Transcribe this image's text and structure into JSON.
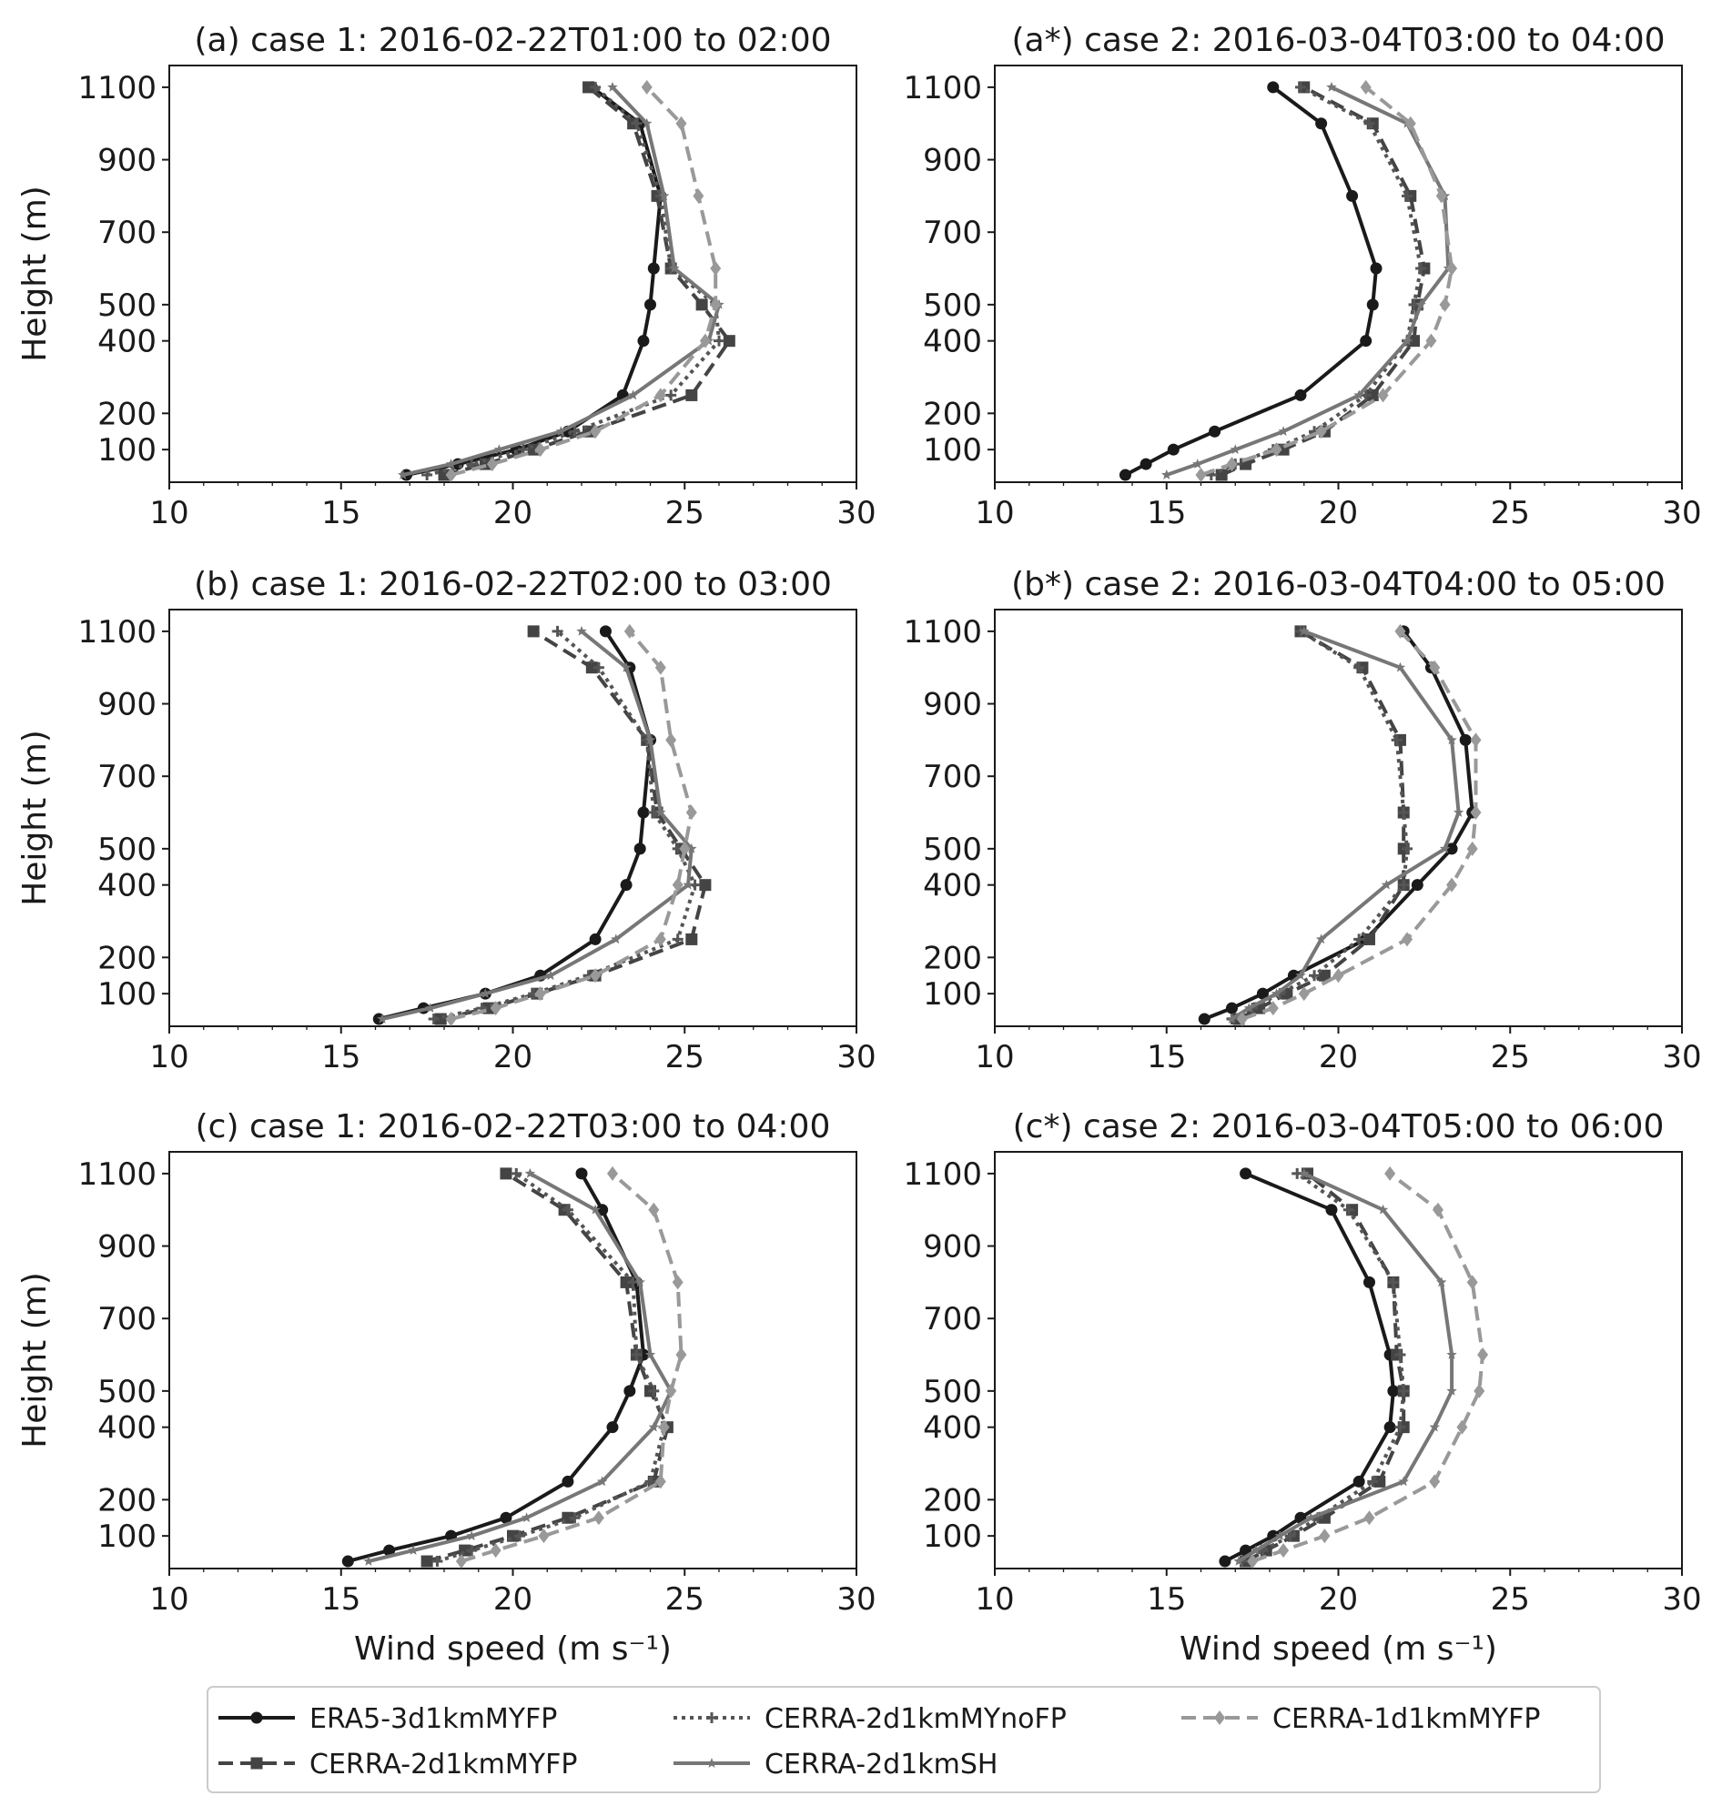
{
  "figure": {
    "xlabel": "Wind speed (m s⁻¹)",
    "ylabel": "Height (m)",
    "legend_placement": "bottom-center"
  },
  "series_styles": [
    {
      "name": "ERA5-3d1kmMYFP",
      "color": "#1a1a1a",
      "dash": "solid",
      "marker": "circle"
    },
    {
      "name": "CERRA-2d1kmMYFP",
      "color": "#444444",
      "dash": "dashed",
      "marker": "square"
    },
    {
      "name": "CERRA-2d1kmMYnoFP",
      "color": "#555555",
      "dash": "dotted",
      "marker": "plus"
    },
    {
      "name": "CERRA-2d1kmSH",
      "color": "#777777",
      "dash": "solid",
      "marker": "star"
    },
    {
      "name": "CERRA-1d1kmMYFP",
      "color": "#999999",
      "dash": "dashed",
      "marker": "diamond"
    }
  ],
  "chart_data": [
    {
      "type": "line",
      "title": "(a) case 1: 2016-02-22T01:00 to 02:00",
      "xlim": [
        10,
        30
      ],
      "ylim": [
        10,
        1160
      ],
      "xticks": [
        10,
        15,
        20,
        25,
        30
      ],
      "yticks": [
        100,
        200,
        400,
        500,
        700,
        900,
        1100
      ],
      "heights": [
        30,
        60,
        100,
        150,
        250,
        400,
        500,
        600,
        800,
        1000,
        1100
      ],
      "series": [
        {
          "name": "ERA5-3d1kmMYFP",
          "values": [
            16.9,
            18.4,
            20.1,
            21.6,
            23.2,
            23.8,
            24.0,
            24.1,
            24.3,
            23.7,
            22.3
          ]
        },
        {
          "name": "CERRA-2d1kmMYFP",
          "values": [
            18.0,
            19.2,
            20.6,
            22.2,
            25.2,
            26.3,
            25.5,
            24.6,
            24.2,
            23.5,
            22.2
          ]
        },
        {
          "name": "CERRA-2d1kmMYnoFP",
          "values": [
            17.5,
            18.8,
            20.3,
            21.8,
            24.6,
            26.0,
            25.9,
            24.6,
            24.3,
            23.6,
            22.4
          ]
        },
        {
          "name": "CERRA-2d1kmSH",
          "values": [
            16.8,
            18.2,
            19.6,
            21.4,
            23.5,
            25.7,
            26.0,
            24.7,
            24.4,
            23.9,
            22.9
          ]
        },
        {
          "name": "CERRA-1d1kmMYFP",
          "values": [
            18.2,
            19.4,
            20.8,
            22.4,
            24.3,
            25.6,
            25.9,
            25.9,
            25.4,
            24.9,
            23.9
          ]
        }
      ]
    },
    {
      "type": "line",
      "title": "(a*) case 2: 2016-03-04T03:00 to 04:00",
      "xlim": [
        10,
        30
      ],
      "ylim": [
        10,
        1160
      ],
      "xticks": [
        10,
        15,
        20,
        25,
        30
      ],
      "yticks": [
        100,
        200,
        400,
        500,
        700,
        900,
        1100
      ],
      "heights": [
        30,
        60,
        100,
        150,
        250,
        400,
        500,
        600,
        800,
        1000,
        1100
      ],
      "series": [
        {
          "name": "ERA5-3d1kmMYFP",
          "values": [
            13.8,
            14.4,
            15.2,
            16.4,
            18.9,
            20.8,
            21.0,
            21.1,
            20.4,
            19.5,
            18.1
          ]
        },
        {
          "name": "CERRA-2d1kmMYFP",
          "values": [
            16.6,
            17.3,
            18.4,
            19.6,
            21.0,
            22.2,
            22.3,
            22.5,
            22.1,
            21.0,
            19.0
          ]
        },
        {
          "name": "CERRA-2d1kmMYnoFP",
          "values": [
            16.3,
            17.0,
            18.1,
            19.3,
            20.8,
            22.0,
            22.2,
            22.4,
            22.0,
            20.9,
            18.9
          ]
        },
        {
          "name": "CERRA-2d1kmSH",
          "values": [
            15.0,
            15.9,
            17.0,
            18.4,
            20.6,
            22.0,
            22.4,
            23.2,
            23.1,
            22.0,
            19.8
          ]
        },
        {
          "name": "CERRA-1d1kmMYFP",
          "values": [
            16.0,
            16.9,
            18.2,
            19.5,
            21.3,
            22.7,
            23.1,
            23.3,
            23.0,
            22.1,
            20.8
          ]
        }
      ]
    },
    {
      "type": "line",
      "title": "(b) case 1: 2016-02-22T02:00 to 03:00",
      "xlim": [
        10,
        30
      ],
      "ylim": [
        10,
        1160
      ],
      "xticks": [
        10,
        15,
        20,
        25,
        30
      ],
      "yticks": [
        100,
        200,
        400,
        500,
        700,
        900,
        1100
      ],
      "heights": [
        30,
        60,
        100,
        150,
        250,
        400,
        500,
        600,
        800,
        1000,
        1100
      ],
      "series": [
        {
          "name": "ERA5-3d1kmMYFP",
          "values": [
            16.1,
            17.4,
            19.2,
            20.8,
            22.4,
            23.3,
            23.7,
            23.8,
            24.0,
            23.4,
            22.7
          ]
        },
        {
          "name": "CERRA-2d1kmMYFP",
          "values": [
            17.9,
            19.3,
            20.7,
            22.4,
            25.2,
            25.6,
            24.9,
            24.2,
            23.9,
            22.3,
            20.6
          ]
        },
        {
          "name": "CERRA-2d1kmMYnoFP",
          "values": [
            17.7,
            19.1,
            20.6,
            22.2,
            24.8,
            25.3,
            24.8,
            24.1,
            23.9,
            22.5,
            21.3
          ]
        },
        {
          "name": "CERRA-2d1kmSH",
          "values": [
            16.2,
            17.6,
            19.2,
            21.1,
            23.0,
            25.1,
            25.2,
            24.3,
            24.0,
            23.3,
            22.0
          ]
        },
        {
          "name": "CERRA-1d1kmMYFP",
          "values": [
            18.2,
            19.5,
            20.8,
            22.4,
            24.3,
            24.8,
            25.0,
            25.2,
            24.6,
            24.3,
            23.4
          ]
        }
      ]
    },
    {
      "type": "line",
      "title": "(b*) case 2: 2016-03-04T04:00 to 05:00",
      "xlim": [
        10,
        30
      ],
      "ylim": [
        10,
        1160
      ],
      "xticks": [
        10,
        15,
        20,
        25,
        30
      ],
      "yticks": [
        100,
        200,
        400,
        500,
        700,
        900,
        1100
      ],
      "heights": [
        30,
        60,
        100,
        150,
        250,
        400,
        500,
        600,
        800,
        1000,
        1100
      ],
      "series": [
        {
          "name": "ERA5-3d1kmMYFP",
          "values": [
            16.1,
            16.9,
            17.8,
            18.7,
            20.8,
            22.3,
            23.3,
            23.9,
            23.7,
            22.7,
            21.9
          ]
        },
        {
          "name": "CERRA-2d1kmMYFP",
          "values": [
            17.1,
            17.7,
            18.5,
            19.6,
            20.9,
            21.9,
            21.9,
            21.9,
            21.8,
            20.7,
            18.9
          ]
        },
        {
          "name": "CERRA-2d1kmMYnoFP",
          "values": [
            16.9,
            17.5,
            18.3,
            19.3,
            20.6,
            21.9,
            22.0,
            21.9,
            21.7,
            20.6,
            18.9
          ]
        },
        {
          "name": "CERRA-2d1kmSH",
          "values": [
            16.9,
            17.4,
            18.2,
            18.9,
            19.5,
            21.4,
            23.1,
            23.5,
            23.3,
            21.8,
            19.0
          ]
        },
        {
          "name": "CERRA-1d1kmMYFP",
          "values": [
            17.2,
            18.1,
            19.0,
            20.0,
            22.0,
            23.3,
            23.9,
            24.0,
            24.0,
            22.8,
            21.8
          ]
        }
      ]
    },
    {
      "type": "line",
      "title": "(c) case 1: 2016-02-22T03:00 to 04:00",
      "xlim": [
        10,
        30
      ],
      "ylim": [
        10,
        1160
      ],
      "xticks": [
        10,
        15,
        20,
        25,
        30
      ],
      "yticks": [
        100,
        200,
        400,
        500,
        700,
        900,
        1100
      ],
      "heights": [
        30,
        60,
        100,
        150,
        250,
        400,
        500,
        600,
        800,
        1000,
        1100
      ],
      "series": [
        {
          "name": "ERA5-3d1kmMYFP",
          "values": [
            15.2,
            16.4,
            18.2,
            19.8,
            21.6,
            22.9,
            23.4,
            23.8,
            23.6,
            22.6,
            22.0
          ]
        },
        {
          "name": "CERRA-2d1kmMYFP",
          "values": [
            17.5,
            18.6,
            20.0,
            21.6,
            24.1,
            24.5,
            24.0,
            23.6,
            23.3,
            21.5,
            19.8
          ]
        },
        {
          "name": "CERRA-2d1kmMYnoFP",
          "values": [
            17.8,
            18.8,
            20.2,
            21.8,
            24.0,
            24.4,
            24.1,
            23.6,
            23.5,
            21.6,
            20.1
          ]
        },
        {
          "name": "CERRA-2d1kmSH",
          "values": [
            15.8,
            17.1,
            18.8,
            20.4,
            22.6,
            24.1,
            24.6,
            24.0,
            23.7,
            22.4,
            20.5
          ]
        },
        {
          "name": "CERRA-1d1kmMYFP",
          "values": [
            18.5,
            19.5,
            20.9,
            22.5,
            24.3,
            24.4,
            24.6,
            24.9,
            24.8,
            24.1,
            22.9
          ]
        }
      ]
    },
    {
      "type": "line",
      "title": "(c*) case 2: 2016-03-04T05:00 to 06:00",
      "xlim": [
        10,
        30
      ],
      "ylim": [
        10,
        1160
      ],
      "xticks": [
        10,
        15,
        20,
        25,
        30
      ],
      "yticks": [
        100,
        200,
        400,
        500,
        700,
        900,
        1100
      ],
      "heights": [
        30,
        60,
        100,
        150,
        250,
        400,
        500,
        600,
        800,
        1000,
        1100
      ],
      "series": [
        {
          "name": "ERA5-3d1kmMYFP",
          "values": [
            16.7,
            17.3,
            18.1,
            18.9,
            20.6,
            21.5,
            21.6,
            21.5,
            20.9,
            19.8,
            17.3
          ]
        },
        {
          "name": "CERRA-2d1kmMYFP",
          "values": [
            17.3,
            17.9,
            18.7,
            19.6,
            21.2,
            21.9,
            21.9,
            21.7,
            21.6,
            20.4,
            19.1
          ]
        },
        {
          "name": "CERRA-2d1kmMYnoFP",
          "values": [
            17.2,
            17.8,
            18.6,
            19.4,
            21.0,
            21.8,
            21.9,
            21.8,
            21.6,
            20.3,
            18.8
          ]
        },
        {
          "name": "CERRA-2d1kmSH",
          "values": [
            17.1,
            17.6,
            18.3,
            19.2,
            21.9,
            22.8,
            23.3,
            23.3,
            23.0,
            21.3,
            19.0
          ]
        },
        {
          "name": "CERRA-1d1kmMYFP",
          "values": [
            17.5,
            18.4,
            19.6,
            20.9,
            22.8,
            23.6,
            24.1,
            24.2,
            23.9,
            22.9,
            21.5
          ]
        }
      ]
    }
  ]
}
